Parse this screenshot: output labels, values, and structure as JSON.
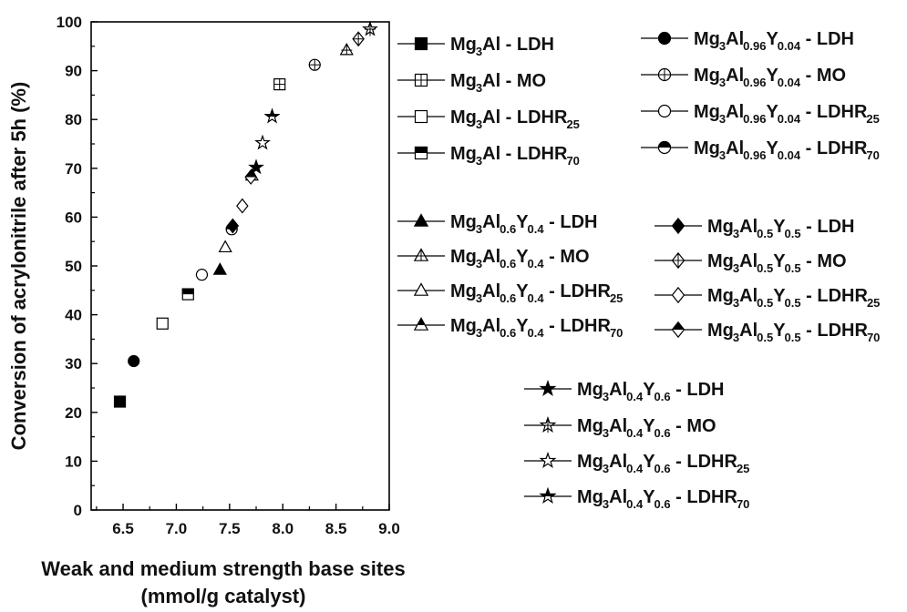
{
  "chart_data": {
    "type": "scatter",
    "title": "",
    "xlabel_lines": [
      "Weak and medium strength base sites",
      "(mmol/g catalyst)"
    ],
    "ylabel": "Conversion of acrylonitrile after 5h (%)",
    "xlim": [
      6.2,
      9.0
    ],
    "ylim": [
      0,
      100
    ],
    "x_ticks": [
      "6.5",
      "7.0",
      "7.5",
      "8.0",
      "8.5",
      "9.0"
    ],
    "y_ticks": [
      "0",
      "10",
      "20",
      "30",
      "40",
      "50",
      "60",
      "70",
      "80",
      "90",
      "100"
    ],
    "grid": false,
    "legend_position": "right",
    "series": [
      {
        "name": "Mg3Al - LDH",
        "label_parts": [
          [
            "Mg",
            "n"
          ],
          [
            "3",
            "s"
          ],
          [
            "Al - LDH",
            "n"
          ]
        ],
        "marker": "square-filled",
        "points": [
          [
            6.47,
            22.2
          ]
        ]
      },
      {
        "name": "Mg3Al - MO",
        "label_parts": [
          [
            "Mg",
            "n"
          ],
          [
            "3",
            "s"
          ],
          [
            "Al - MO",
            "n"
          ]
        ],
        "marker": "square-cross",
        "points": [
          [
            7.97,
            87.2
          ]
        ]
      },
      {
        "name": "Mg3Al - LDHR25",
        "label_parts": [
          [
            "Mg",
            "n"
          ],
          [
            "3",
            "s"
          ],
          [
            "Al - LDHR",
            "n"
          ],
          [
            "25",
            "s"
          ]
        ],
        "marker": "square-open",
        "points": [
          [
            6.87,
            38.2
          ]
        ]
      },
      {
        "name": "Mg3Al - LDHR70",
        "label_parts": [
          [
            "Mg",
            "n"
          ],
          [
            "3",
            "s"
          ],
          [
            "Al - LDHR",
            "n"
          ],
          [
            "70",
            "s"
          ]
        ],
        "marker": "square-half",
        "points": [
          [
            7.11,
            44.2
          ]
        ]
      },
      {
        "name": "Mg3Al0.96Y0.04 - LDH",
        "label_parts": [
          [
            "Mg",
            "n"
          ],
          [
            "3",
            "s"
          ],
          [
            "Al",
            "n"
          ],
          [
            "0.96",
            "s"
          ],
          [
            "Y",
            "n"
          ],
          [
            "0.04",
            "s"
          ],
          [
            " - LDH",
            "n"
          ]
        ],
        "marker": "circle-filled",
        "points": [
          [
            6.6,
            30.5
          ]
        ]
      },
      {
        "name": "Mg3Al0.96Y0.04 - MO",
        "label_parts": [
          [
            "Mg",
            "n"
          ],
          [
            "3",
            "s"
          ],
          [
            "Al",
            "n"
          ],
          [
            "0.96",
            "s"
          ],
          [
            "Y",
            "n"
          ],
          [
            "0.04",
            "s"
          ],
          [
            " - MO",
            "n"
          ]
        ],
        "marker": "circle-cross",
        "points": [
          [
            8.3,
            91.2
          ]
        ]
      },
      {
        "name": "Mg3Al0.96Y0.04 - LDHR25",
        "label_parts": [
          [
            "Mg",
            "n"
          ],
          [
            "3",
            "s"
          ],
          [
            "Al",
            "n"
          ],
          [
            "0.96",
            "s"
          ],
          [
            "Y",
            "n"
          ],
          [
            "0.04",
            "s"
          ],
          [
            " - LDHR",
            "n"
          ],
          [
            "25",
            "s"
          ]
        ],
        "marker": "circle-open",
        "points": [
          [
            7.24,
            48.2
          ]
        ]
      },
      {
        "name": "Mg3Al0.96Y0.04 - LDHR70",
        "label_parts": [
          [
            "Mg",
            "n"
          ],
          [
            "3",
            "s"
          ],
          [
            "Al",
            "n"
          ],
          [
            "0.96",
            "s"
          ],
          [
            "Y",
            "n"
          ],
          [
            "0.04",
            "s"
          ],
          [
            " - LDHR",
            "n"
          ],
          [
            "70",
            "s"
          ]
        ],
        "marker": "circle-half",
        "points": [
          [
            7.52,
            57.5
          ]
        ]
      },
      {
        "name": "Mg3Al0.6Y0.4 - LDH",
        "label_parts": [
          [
            "Mg",
            "n"
          ],
          [
            "3",
            "s"
          ],
          [
            "Al",
            "n"
          ],
          [
            "0.6",
            "s"
          ],
          [
            "Y",
            "n"
          ],
          [
            "0.4",
            "s"
          ],
          [
            " - LDH",
            "n"
          ]
        ],
        "marker": "triangle-filled",
        "points": [
          [
            7.41,
            49.2
          ]
        ]
      },
      {
        "name": "Mg3Al0.6Y0.4 - MO",
        "label_parts": [
          [
            "Mg",
            "n"
          ],
          [
            "3",
            "s"
          ],
          [
            "Al",
            "n"
          ],
          [
            "0.6",
            "s"
          ],
          [
            "Y",
            "n"
          ],
          [
            "0.4",
            "s"
          ],
          [
            " - MO",
            "n"
          ]
        ],
        "marker": "triangle-cross",
        "points": [
          [
            8.6,
            94.2
          ]
        ]
      },
      {
        "name": "Mg3Al0.6Y0.4 - LDHR25",
        "label_parts": [
          [
            "Mg",
            "n"
          ],
          [
            "3",
            "s"
          ],
          [
            "Al",
            "n"
          ],
          [
            "0.6",
            "s"
          ],
          [
            "Y",
            "n"
          ],
          [
            "0.4",
            "s"
          ],
          [
            " - LDHR",
            "n"
          ],
          [
            "25",
            "s"
          ]
        ],
        "marker": "triangle-open",
        "points": [
          [
            7.46,
            53.8
          ]
        ]
      },
      {
        "name": "Mg3Al0.6Y0.4 - LDHR70",
        "label_parts": [
          [
            "Mg",
            "n"
          ],
          [
            "3",
            "s"
          ],
          [
            "Al",
            "n"
          ],
          [
            "0.6",
            "s"
          ],
          [
            "Y",
            "n"
          ],
          [
            "0.4",
            "s"
          ],
          [
            " - LDHR",
            "n"
          ],
          [
            "70",
            "s"
          ]
        ],
        "marker": "triangle-half",
        "points": [
          [
            7.71,
            68.5
          ]
        ]
      },
      {
        "name": "Mg3Al0.5Y0.5 - LDH",
        "label_parts": [
          [
            "Mg",
            "n"
          ],
          [
            "3",
            "s"
          ],
          [
            "Al",
            "n"
          ],
          [
            "0.5",
            "s"
          ],
          [
            "Y",
            "n"
          ],
          [
            "0.5",
            "s"
          ],
          [
            " - LDH",
            "n"
          ]
        ],
        "marker": "diamond-filled",
        "points": [
          [
            7.53,
            58.2
          ]
        ]
      },
      {
        "name": "Mg3Al0.5Y0.5 - MO",
        "label_parts": [
          [
            "Mg",
            "n"
          ],
          [
            "3",
            "s"
          ],
          [
            "Al",
            "n"
          ],
          [
            "0.5",
            "s"
          ],
          [
            "Y",
            "n"
          ],
          [
            "0.5",
            "s"
          ],
          [
            " - MO",
            "n"
          ]
        ],
        "marker": "diamond-cross",
        "points": [
          [
            8.71,
            96.5
          ]
        ]
      },
      {
        "name": "Mg3Al0.5Y0.5 - LDHR25",
        "label_parts": [
          [
            "Mg",
            "n"
          ],
          [
            "3",
            "s"
          ],
          [
            "Al",
            "n"
          ],
          [
            "0.5",
            "s"
          ],
          [
            "Y",
            "n"
          ],
          [
            "0.5",
            "s"
          ],
          [
            " - LDHR",
            "n"
          ],
          [
            "25",
            "s"
          ]
        ],
        "marker": "diamond-open",
        "points": [
          [
            7.62,
            62.3
          ]
        ]
      },
      {
        "name": "Mg3Al0.5Y0.5 - LDHR70",
        "label_parts": [
          [
            "Mg",
            "n"
          ],
          [
            "3",
            "s"
          ],
          [
            "Al",
            "n"
          ],
          [
            "0.5",
            "s"
          ],
          [
            "Y",
            "n"
          ],
          [
            "0.5",
            "s"
          ],
          [
            " - LDHR",
            "n"
          ],
          [
            "70",
            "s"
          ]
        ],
        "marker": "diamond-half",
        "points": [
          [
            7.7,
            68.2
          ]
        ]
      },
      {
        "name": "Mg3Al0.4Y0.6 - LDH",
        "label_parts": [
          [
            "Mg",
            "n"
          ],
          [
            "3",
            "s"
          ],
          [
            "Al",
            "n"
          ],
          [
            "0.4",
            "s"
          ],
          [
            "Y",
            "n"
          ],
          [
            "0.6",
            "s"
          ],
          [
            " - LDH",
            "n"
          ]
        ],
        "marker": "star-filled",
        "points": [
          [
            7.75,
            70.2
          ]
        ]
      },
      {
        "name": "Mg3Al0.4Y0.6 - MO",
        "label_parts": [
          [
            "Mg",
            "n"
          ],
          [
            "3",
            "s"
          ],
          [
            "Al",
            "n"
          ],
          [
            "0.4",
            "s"
          ],
          [
            "Y",
            "n"
          ],
          [
            "0.6",
            "s"
          ],
          [
            " - MO",
            "n"
          ]
        ],
        "marker": "star-cross",
        "points": [
          [
            8.82,
            98.5
          ]
        ]
      },
      {
        "name": "Mg3Al0.4Y0.6 - LDHR25",
        "label_parts": [
          [
            "Mg",
            "n"
          ],
          [
            "3",
            "s"
          ],
          [
            "Al",
            "n"
          ],
          [
            "0.4",
            "s"
          ],
          [
            "Y",
            "n"
          ],
          [
            "0.6",
            "s"
          ],
          [
            " - LDHR",
            "n"
          ],
          [
            "25",
            "s"
          ]
        ],
        "marker": "star-open",
        "points": [
          [
            7.81,
            75.2
          ]
        ]
      },
      {
        "name": "Mg3Al0.4Y0.6 - LDHR70",
        "label_parts": [
          [
            "Mg",
            "n"
          ],
          [
            "3",
            "s"
          ],
          [
            "Al",
            "n"
          ],
          [
            "0.4",
            "s"
          ],
          [
            "Y",
            "n"
          ],
          [
            "0.6",
            "s"
          ],
          [
            " - LDHR",
            "n"
          ],
          [
            "70",
            "s"
          ]
        ],
        "marker": "star-half",
        "points": [
          [
            7.9,
            80.6
          ]
        ]
      }
    ]
  }
}
